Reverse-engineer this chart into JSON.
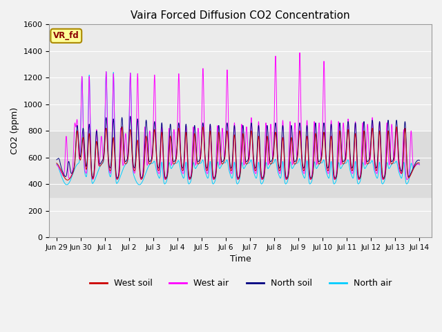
{
  "title": "Vaira Forced Diffusion CO2 Concentration",
  "xlabel": "Time",
  "ylabel": "CO2 (ppm)",
  "ylim": [
    0,
    1500
  ],
  "annotation_text": "VR_fd",
  "legend_labels": [
    "West soil",
    "West air",
    "North soil",
    "North air"
  ],
  "line_colors": {
    "west_soil": "#cc0000",
    "west_air": "#ff00ff",
    "north_soil": "#000080",
    "north_air": "#00ccff"
  },
  "legend_colors": [
    "#cc0000",
    "#ff00ff",
    "#000080",
    "#00ccff"
  ],
  "xtick_labels": [
    "Jun 29",
    "Jun 30",
    "Jul 1",
    "Jul 2",
    "Jul 3",
    "Jul 4",
    "Jul 5",
    "Jul 6",
    "Jul 7",
    "Jul 8",
    "Jul 9",
    "Jul 10",
    "Jul 11",
    "Jul 12",
    "Jul 13",
    "Jul 14"
  ],
  "xtick_positions": [
    0,
    1,
    2,
    3,
    4,
    5,
    6,
    7,
    8,
    9,
    10,
    11,
    12,
    13,
    14,
    15
  ],
  "shaded_ymin": 300,
  "shaded_ymax": 800,
  "shaded_color": "#dcdcdc",
  "bg_color": "#ebebeb",
  "grid_color": "#ffffff",
  "ytick_step": 200,
  "font_size": 9,
  "title_font_size": 11
}
